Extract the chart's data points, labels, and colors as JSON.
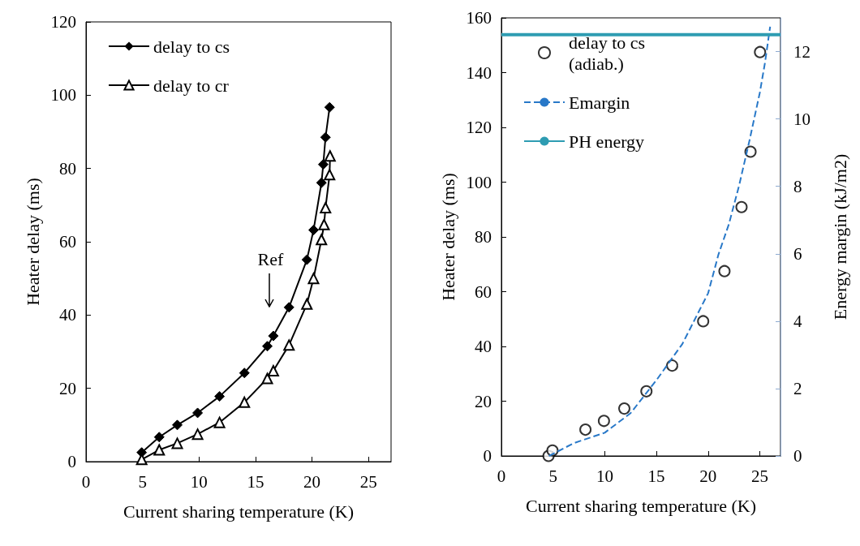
{
  "chart_data": [
    {
      "type": "line",
      "xlabel": "Current sharing temperature (K)",
      "ylabel": "Heater delay (ms)",
      "xlim": [
        0,
        27
      ],
      "xticks": [
        0,
        5,
        10,
        15,
        20,
        25
      ],
      "ylim": [
        0,
        120
      ],
      "yticks": [
        0,
        20,
        40,
        60,
        80,
        100,
        120
      ],
      "grid": false,
      "legend": "top left",
      "line_style": "solid",
      "annotations": [
        "Ref"
      ],
      "series": [
        {
          "name": "delay to cs",
          "color": "#000000",
          "marker": "diamond",
          "x": [
            4.93,
            6.48,
            8.08,
            9.88,
            11.82,
            14.02,
            16.05,
            16.58,
            17.97,
            19.55,
            20.14,
            20.84,
            21.0,
            21.2,
            21.56
          ],
          "values": [
            2.5,
            6.7,
            10.0,
            13.3,
            17.8,
            24.2,
            31.5,
            34.3,
            42.1,
            55.1,
            63.2,
            76.1,
            81.1,
            88.5,
            96.7
          ]
        },
        {
          "name": "delay to cr",
          "color": "#000000",
          "marker": "triangle",
          "x": [
            4.93,
            6.48,
            8.08,
            9.88,
            11.82,
            14.02,
            16.05,
            16.58,
            17.97,
            19.55,
            20.14,
            20.84,
            21.07,
            21.2,
            21.56,
            21.6
          ],
          "values": [
            0.6,
            3.2,
            5.0,
            7.5,
            10.7,
            16.2,
            22.7,
            24.8,
            31.8,
            43.0,
            50.0,
            60.6,
            64.7,
            69.3,
            78.3,
            83.4
          ]
        }
      ]
    },
    {
      "type": "scatter",
      "xlabel": "Current sharing temperature (K)",
      "ylabel": "Heater delay (ms)",
      "y2label": "Energy margin (kJ/m2)",
      "xlim": [
        0,
        27
      ],
      "xticks": [
        0,
        5,
        10,
        15,
        20,
        25
      ],
      "ylim": [
        0,
        160
      ],
      "yticks": [
        0,
        20,
        40,
        60,
        80,
        100,
        120,
        140,
        160
      ],
      "y2lim": [
        0,
        13
      ],
      "y2ticks": [
        0,
        2,
        4,
        6,
        8,
        10,
        12
      ],
      "grid": false,
      "legend": "top left",
      "series": [
        {
          "name": "delay to cs (adiab.)",
          "color": "#000000",
          "marker": "circle",
          "x": [
            4.56,
            4.94,
            8.13,
            9.92,
            11.89,
            14.03,
            16.52,
            19.52,
            21.58,
            23.23,
            24.1,
            25.02
          ],
          "values": [
            0,
            2.0,
            9.6,
            12.8,
            17.3,
            23.6,
            33.0,
            49.2,
            67.5,
            90.9,
            111.1,
            147.5
          ]
        },
        {
          "name": "Emargin",
          "type": "line",
          "axis": "y2",
          "color": "#2878c8",
          "marker": "none",
          "line_style": "dashed",
          "x": [
            4.6,
            7,
            10,
            12.5,
            15,
            17.5,
            20,
            21,
            22,
            23,
            24,
            25,
            25.5,
            26
          ],
          "values": [
            0,
            0.38,
            0.69,
            1.27,
            2.25,
            3.32,
            4.83,
            5.98,
            6.87,
            8.03,
            9.36,
            10.78,
            11.67,
            12.74
          ]
        },
        {
          "name": "PH energy",
          "type": "line",
          "axis": "y2",
          "color": "#2e9cb2",
          "marker": "none",
          "line_style": "solid",
          "x": [
            0,
            27
          ],
          "values": [
            12.5,
            12.5
          ]
        }
      ]
    }
  ]
}
